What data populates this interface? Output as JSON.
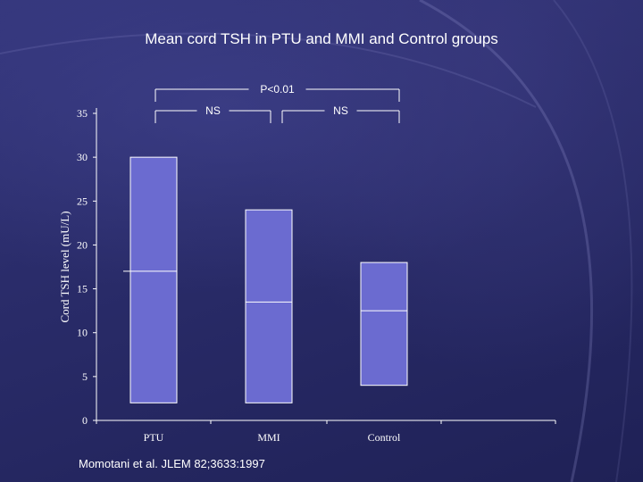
{
  "slide": {
    "title": "Mean cord TSH in PTU and MMI and Control groups",
    "citation": "Momotani et al. JLEM 82;3633:1997"
  },
  "colors": {
    "background": "#2b2d6e",
    "box_fill": "#6b6bd0",
    "box_stroke": "#ffffff",
    "text": "#ffffff"
  },
  "chart_data": {
    "type": "box",
    "ylabel": "Cord TSH level (mU/L)",
    "xlabel": "",
    "ylim": [
      0,
      35
    ],
    "yticks": [
      0,
      5,
      10,
      15,
      20,
      25,
      30,
      35
    ],
    "categories": [
      "PTU",
      "MMI",
      "Control"
    ],
    "boxes": [
      {
        "category": "PTU",
        "low": 2,
        "high": 30,
        "mean": 17
      },
      {
        "category": "MMI",
        "low": 2,
        "high": 24,
        "mean": 13.5
      },
      {
        "category": "Control",
        "low": 4,
        "high": 18,
        "mean": 12.5
      }
    ],
    "annotations": [
      {
        "text": "P<0.01",
        "from": "PTU",
        "to": "Control"
      },
      {
        "text": "NS",
        "from": "PTU",
        "to": "MMI"
      },
      {
        "text": "NS",
        "from": "MMI",
        "to": "Control"
      }
    ]
  }
}
